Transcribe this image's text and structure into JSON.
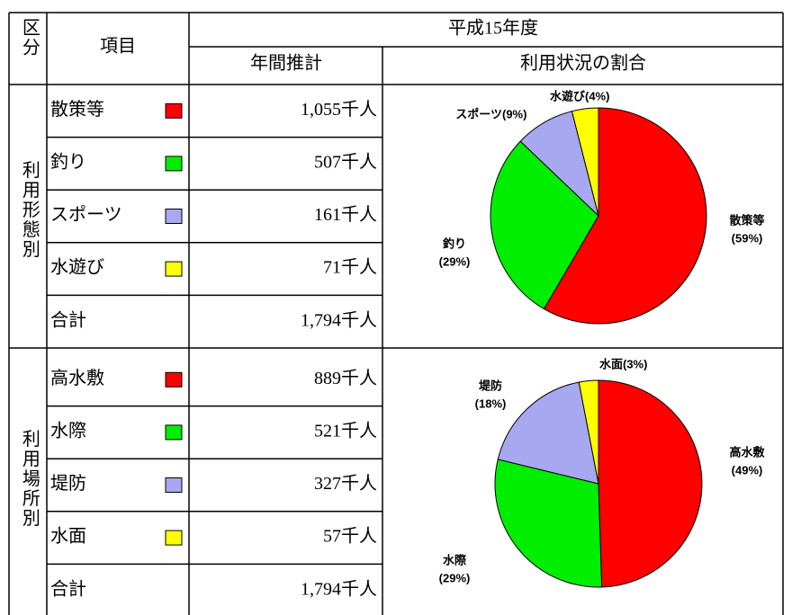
{
  "table": {
    "header": {
      "category": "区分",
      "item": "項目",
      "period": "平成15年度",
      "annual": "年間推計",
      "ratio": "利用状況の割合"
    },
    "groups": [
      {
        "label": "利用形態別",
        "rows": [
          {
            "item": "散策等",
            "color": "#ff0000",
            "estimate": "1,055千人"
          },
          {
            "item": "釣り",
            "color": "#00ee00",
            "estimate": "507千人"
          },
          {
            "item": "スポーツ",
            "color": "#a8a8f0",
            "estimate": "161千人"
          },
          {
            "item": "水遊び",
            "color": "#ffff00",
            "estimate": "71千人"
          }
        ],
        "total": {
          "item": "合計",
          "estimate": "1,794千人"
        },
        "pie": {
          "type": "pie",
          "values": [
            59,
            29,
            9,
            4
          ],
          "value_labels": [
            "(59%)",
            "(29%)",
            "(9%)",
            "(4%)"
          ]
        }
      },
      {
        "label": "利用場所別",
        "rows": [
          {
            "item": "高水敷",
            "color": "#ff0000",
            "estimate": "889千人"
          },
          {
            "item": "水際",
            "color": "#00ee00",
            "estimate": "521千人"
          },
          {
            "item": "堤防",
            "color": "#a8a8f0",
            "estimate": "327千人"
          },
          {
            "item": "水面",
            "color": "#ffff00",
            "estimate": "57千人"
          }
        ],
        "total": {
          "item": "合計",
          "estimate": "1,794千人"
        },
        "pie": {
          "type": "pie",
          "values": [
            49,
            29,
            18,
            3
          ],
          "value_labels": [
            "(49%)",
            "(29%)",
            "(18%)",
            "(3%)"
          ]
        }
      }
    ]
  }
}
